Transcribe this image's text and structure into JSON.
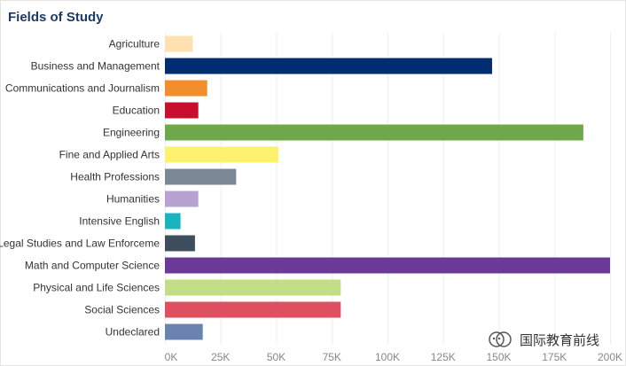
{
  "chart_data": {
    "type": "bar",
    "orientation": "horizontal",
    "title": "Fields of Study",
    "categories": [
      "Agriculture",
      "Business and Management",
      "Communications and Journalism",
      "Education",
      "Engineering",
      "Fine and Applied Arts",
      "Health Professions",
      "Humanities",
      "Intensive English",
      "Legal Studies and Law Enforceme",
      "Math and Computer Science",
      "Physical and Life Sciences",
      "Social Sciences",
      "Undeclared"
    ],
    "values": [
      12500,
      147000,
      19000,
      15000,
      188000,
      51000,
      32000,
      15000,
      7000,
      13500,
      200000,
      79000,
      79000,
      17000
    ],
    "colors": [
      "#ffe0b0",
      "#002d72",
      "#f28e2b",
      "#c8102e",
      "#6fa84b",
      "#fdf26d",
      "#7a8794",
      "#b7a3d1",
      "#1ab4c0",
      "#3f4e5e",
      "#6b3a96",
      "#c3dd87",
      "#de5060",
      "#6a83b0"
    ],
    "xlim": [
      0,
      200000
    ],
    "xticks": [
      0,
      25000,
      50000,
      75000,
      100000,
      125000,
      150000,
      175000,
      200000
    ],
    "xtick_labels": [
      "0K",
      "25K",
      "50K",
      "75K",
      "100K",
      "125K",
      "150K",
      "175K",
      "200K"
    ],
    "xlabel": "",
    "ylabel": "",
    "grid": true
  },
  "watermark": {
    "text": "国际教育前线",
    "icon": "wechat-official-account-icon"
  }
}
